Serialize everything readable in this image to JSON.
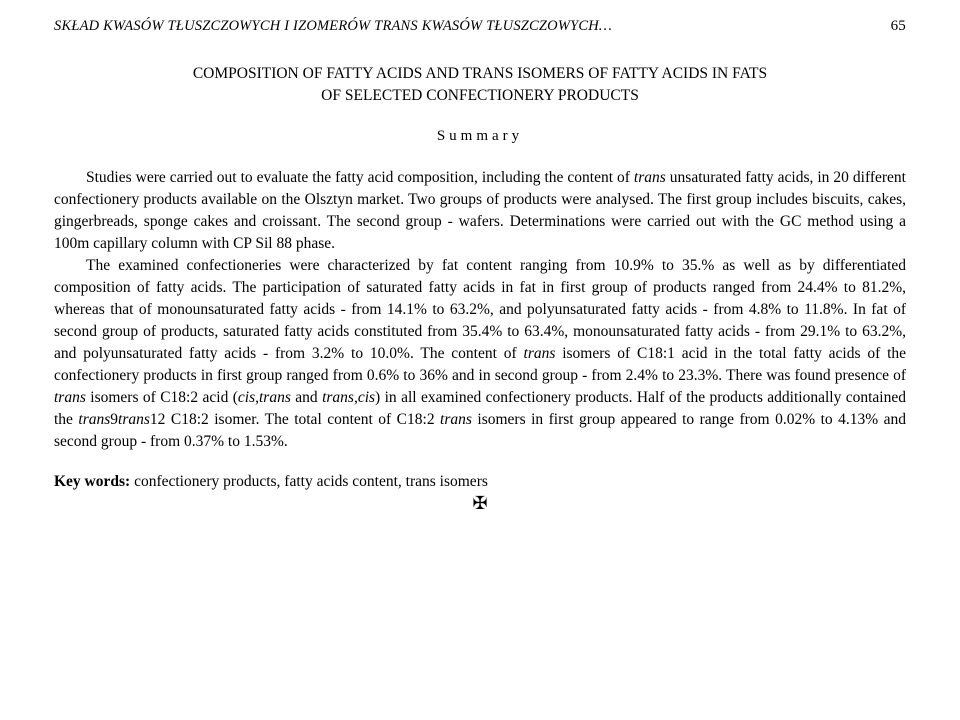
{
  "header": {
    "running_title": "SKŁAD KWASÓW TŁUSZCZOWYCH I IZOMERÓW TRANS KWASÓW TŁUSZCZOWYCH…",
    "page_number": "65"
  },
  "title": {
    "line1": "COMPOSITION OF FATTY ACIDS AND TRANS ISOMERS OF FATTY ACIDS IN FATS",
    "line2": "OF SELECTED CONFECTIONERY PRODUCTS"
  },
  "summary_label": "Summary",
  "paragraphs": {
    "p1_a": "Studies were carried out to evaluate the fatty acid composition, including the content of ",
    "p1_i1": "trans",
    "p1_b": " unsaturated fatty acids, in 20 different confectionery products available on the Olsztyn market. Two groups of products were analysed. The first group includes biscuits, cakes, gingerbreads, sponge cakes and croissant. The second group - wafers. Determinations were carried out with the GC method using a 100m capillary column with CP Sil 88 phase.",
    "p2_a": "The examined confectioneries were characterized by fat content ranging from 10.9% to 35.% as well as by differentiated composition of fatty acids. The participation of saturated fatty acids in fat in first group of products ranged from 24.4% to 81.2%, whereas that of monounsaturated fatty acids - from 14.1% to 63.2%, and polyunsaturated fatty acids - from 4.8% to 11.8%. In fat of second group of products, saturated fatty acids constituted from 35.4% to 63.4%, monounsaturated fatty acids - from 29.1% to 63.2%, and polyunsaturated fatty acids - from 3.2% to 10.0%. The content of ",
    "p2_i1": "trans",
    "p2_b": " isomers of C18:1 acid in the total fatty acids of the confectionery products in first group ranged from 0.6% to 36% and in second group - from 2.4% to 23.3%. There was found presence of ",
    "p2_i2": "trans",
    "p2_c": " isomers of C18:2 acid (",
    "p2_i3": "cis,trans",
    "p2_d": " and ",
    "p2_i4": "trans,cis",
    "p2_e": ") in all examined confectionery products. Half of the products additionally contained the ",
    "p2_i5": "trans",
    "p2_f": "9",
    "p2_i6": "trans",
    "p2_g": "12 C18:2 isomer. The total content of C18:2 ",
    "p2_i7": "trans",
    "p2_h": " isomers in first group appeared to range from 0.02% to 4.13% and second group - from 0.37% to 1.53%."
  },
  "keywords": {
    "label": "Key words:",
    "text": " confectionery products, fatty acids content, trans isomers"
  },
  "separator_glyph": "✠"
}
